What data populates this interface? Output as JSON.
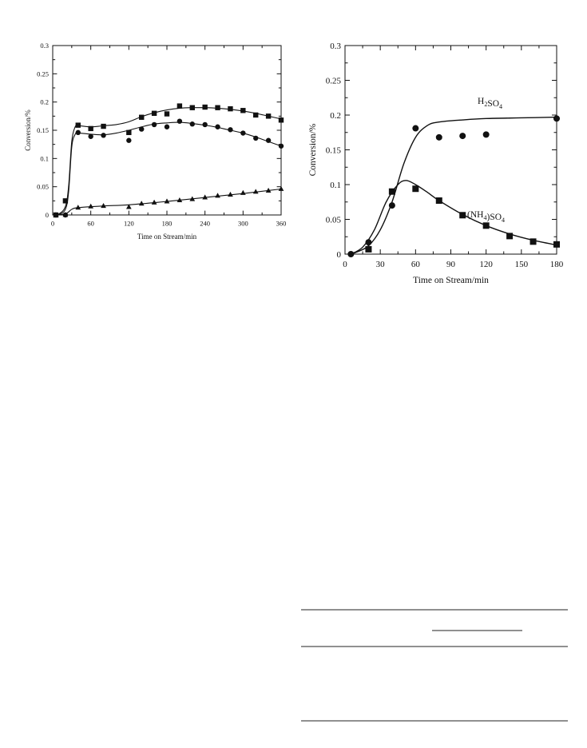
{
  "chart_data": [
    {
      "type": "scatter",
      "title": "",
      "xlabel": "Time on Stream/min",
      "ylabel": "Conversion/%",
      "xlim": [
        0,
        360
      ],
      "ylim": [
        0,
        0.3
      ],
      "xticks": [
        0,
        60,
        120,
        180,
        240,
        300,
        360
      ],
      "yticks": [
        0,
        0.05,
        0.1,
        0.15,
        0.2,
        0.25,
        0.3
      ],
      "xtick_labels": [
        "0",
        "60",
        "120",
        "180",
        "240",
        "300",
        "360"
      ],
      "ytick_labels": [
        "0",
        "0.05",
        "0.1",
        "0.15",
        "0.2",
        "0.25",
        "0.3"
      ],
      "grid": false,
      "series": [
        {
          "marker": "square",
          "points": [
            [
              5,
              0
            ],
            [
              20,
              0.025
            ],
            [
              40,
              0.159
            ],
            [
              60,
              0.153
            ],
            [
              80,
              0.157
            ],
            [
              120,
              0.146
            ],
            [
              140,
              0.173
            ],
            [
              160,
              0.18
            ],
            [
              180,
              0.179
            ],
            [
              200,
              0.193
            ],
            [
              220,
              0.19
            ],
            [
              240,
              0.191
            ],
            [
              260,
              0.19
            ],
            [
              280,
              0.188
            ],
            [
              300,
              0.185
            ],
            [
              320,
              0.177
            ],
            [
              340,
              0.175
            ],
            [
              360,
              0.168
            ]
          ],
          "fit": [
            [
              0,
              0
            ],
            [
              10,
              0.002
            ],
            [
              20,
              0.015
            ],
            [
              25,
              0.05
            ],
            [
              30,
              0.13
            ],
            [
              35,
              0.155
            ],
            [
              40,
              0.158
            ],
            [
              60,
              0.156
            ],
            [
              80,
              0.158
            ],
            [
              100,
              0.16
            ],
            [
              120,
              0.165
            ],
            [
              140,
              0.174
            ],
            [
              160,
              0.181
            ],
            [
              180,
              0.186
            ],
            [
              200,
              0.189
            ],
            [
              220,
              0.19
            ],
            [
              240,
              0.19
            ],
            [
              260,
              0.189
            ],
            [
              280,
              0.187
            ],
            [
              300,
              0.184
            ],
            [
              320,
              0.18
            ],
            [
              340,
              0.175
            ],
            [
              360,
              0.17
            ]
          ]
        },
        {
          "marker": "circle",
          "points": [
            [
              5,
              0
            ],
            [
              20,
              0
            ],
            [
              40,
              0.146
            ],
            [
              60,
              0.139
            ],
            [
              80,
              0.141
            ],
            [
              120,
              0.132
            ],
            [
              140,
              0.152
            ],
            [
              160,
              0.16
            ],
            [
              180,
              0.156
            ],
            [
              200,
              0.166
            ],
            [
              220,
              0.161
            ],
            [
              240,
              0.16
            ],
            [
              260,
              0.156
            ],
            [
              280,
              0.151
            ],
            [
              300,
              0.145
            ],
            [
              320,
              0.136
            ],
            [
              340,
              0.132
            ],
            [
              360,
              0.122
            ]
          ],
          "fit": [
            [
              0,
              0
            ],
            [
              10,
              0.001
            ],
            [
              20,
              0.01
            ],
            [
              25,
              0.04
            ],
            [
              30,
              0.12
            ],
            [
              35,
              0.142
            ],
            [
              40,
              0.145
            ],
            [
              60,
              0.143
            ],
            [
              80,
              0.142
            ],
            [
              100,
              0.145
            ],
            [
              120,
              0.15
            ],
            [
              140,
              0.156
            ],
            [
              160,
              0.161
            ],
            [
              180,
              0.163
            ],
            [
              200,
              0.164
            ],
            [
              220,
              0.162
            ],
            [
              240,
              0.159
            ],
            [
              260,
              0.155
            ],
            [
              280,
              0.15
            ],
            [
              300,
              0.145
            ],
            [
              320,
              0.138
            ],
            [
              340,
              0.13
            ],
            [
              360,
              0.122
            ]
          ]
        },
        {
          "marker": "triangle",
          "points": [
            [
              5,
              0
            ],
            [
              20,
              0
            ],
            [
              40,
              0.013
            ],
            [
              60,
              0.015
            ],
            [
              80,
              0.016
            ],
            [
              120,
              0.014
            ],
            [
              140,
              0.02
            ],
            [
              160,
              0.022
            ],
            [
              180,
              0.024
            ],
            [
              200,
              0.026
            ],
            [
              220,
              0.028
            ],
            [
              240,
              0.031
            ],
            [
              260,
              0.034
            ],
            [
              280,
              0.036
            ],
            [
              300,
              0.039
            ],
            [
              320,
              0.041
            ],
            [
              340,
              0.043
            ],
            [
              360,
              0.046
            ]
          ],
          "fit": [
            [
              0,
              0
            ],
            [
              20,
              0.002
            ],
            [
              30,
              0.01
            ],
            [
              40,
              0.013
            ],
            [
              80,
              0.016
            ],
            [
              120,
              0.018
            ],
            [
              180,
              0.024
            ],
            [
              240,
              0.031
            ],
            [
              300,
              0.038
            ],
            [
              360,
              0.046
            ]
          ]
        }
      ]
    },
    {
      "type": "scatter",
      "title": "",
      "xlabel": "Time on Stream/min",
      "ylabel": "Conversion/%",
      "xlim": [
        0,
        180
      ],
      "ylim": [
        0,
        0.3
      ],
      "xticks": [
        0,
        30,
        60,
        90,
        120,
        150,
        180
      ],
      "yticks": [
        0,
        0.05,
        0.1,
        0.15,
        0.2,
        0.25,
        0.3
      ],
      "xtick_labels": [
        "0",
        "30",
        "60",
        "90",
        "120",
        "150",
        "180"
      ],
      "ytick_labels": [
        "0",
        "0.05",
        "0.1",
        "0.15",
        "0.2",
        "0.25",
        "0.3"
      ],
      "grid": false,
      "series": [
        {
          "name": "H2SO4",
          "label": {
            "text": "H",
            "sub": "2",
            "rest": "SO",
            "sub2": "4"
          },
          "marker": "circle",
          "points": [
            [
              5,
              0
            ],
            [
              20,
              0.017
            ],
            [
              40,
              0.07
            ],
            [
              60,
              0.181
            ],
            [
              80,
              0.168
            ],
            [
              100,
              0.17
            ],
            [
              120,
              0.172
            ],
            [
              180,
              0.195
            ]
          ],
          "fit": [
            [
              5,
              0
            ],
            [
              10,
              0.003
            ],
            [
              20,
              0.012
            ],
            [
              30,
              0.035
            ],
            [
              40,
              0.075
            ],
            [
              50,
              0.13
            ],
            [
              60,
              0.168
            ],
            [
              70,
              0.185
            ],
            [
              80,
              0.19
            ],
            [
              100,
              0.193
            ],
            [
              120,
              0.195
            ],
            [
              150,
              0.196
            ],
            [
              180,
              0.197
            ]
          ]
        },
        {
          "name": "(NH4)SO4",
          "label": {
            "text": "(NH",
            "sub": "4",
            "rest": ")SO",
            "sub2": "4"
          },
          "marker": "square",
          "points": [
            [
              20,
              0.007
            ],
            [
              40,
              0.09
            ],
            [
              60,
              0.094
            ],
            [
              80,
              0.077
            ],
            [
              100,
              0.056
            ],
            [
              120,
              0.041
            ],
            [
              140,
              0.026
            ],
            [
              160,
              0.018
            ],
            [
              180,
              0.014
            ]
          ],
          "fit": [
            [
              5,
              0
            ],
            [
              15,
              0.01
            ],
            [
              25,
              0.035
            ],
            [
              35,
              0.075
            ],
            [
              45,
              0.1
            ],
            [
              52,
              0.106
            ],
            [
              60,
              0.1
            ],
            [
              70,
              0.089
            ],
            [
              80,
              0.077
            ],
            [
              100,
              0.057
            ],
            [
              120,
              0.041
            ],
            [
              140,
              0.029
            ],
            [
              160,
              0.02
            ],
            [
              180,
              0.013
            ]
          ]
        }
      ]
    }
  ],
  "colors": {
    "ink": "#111111"
  }
}
